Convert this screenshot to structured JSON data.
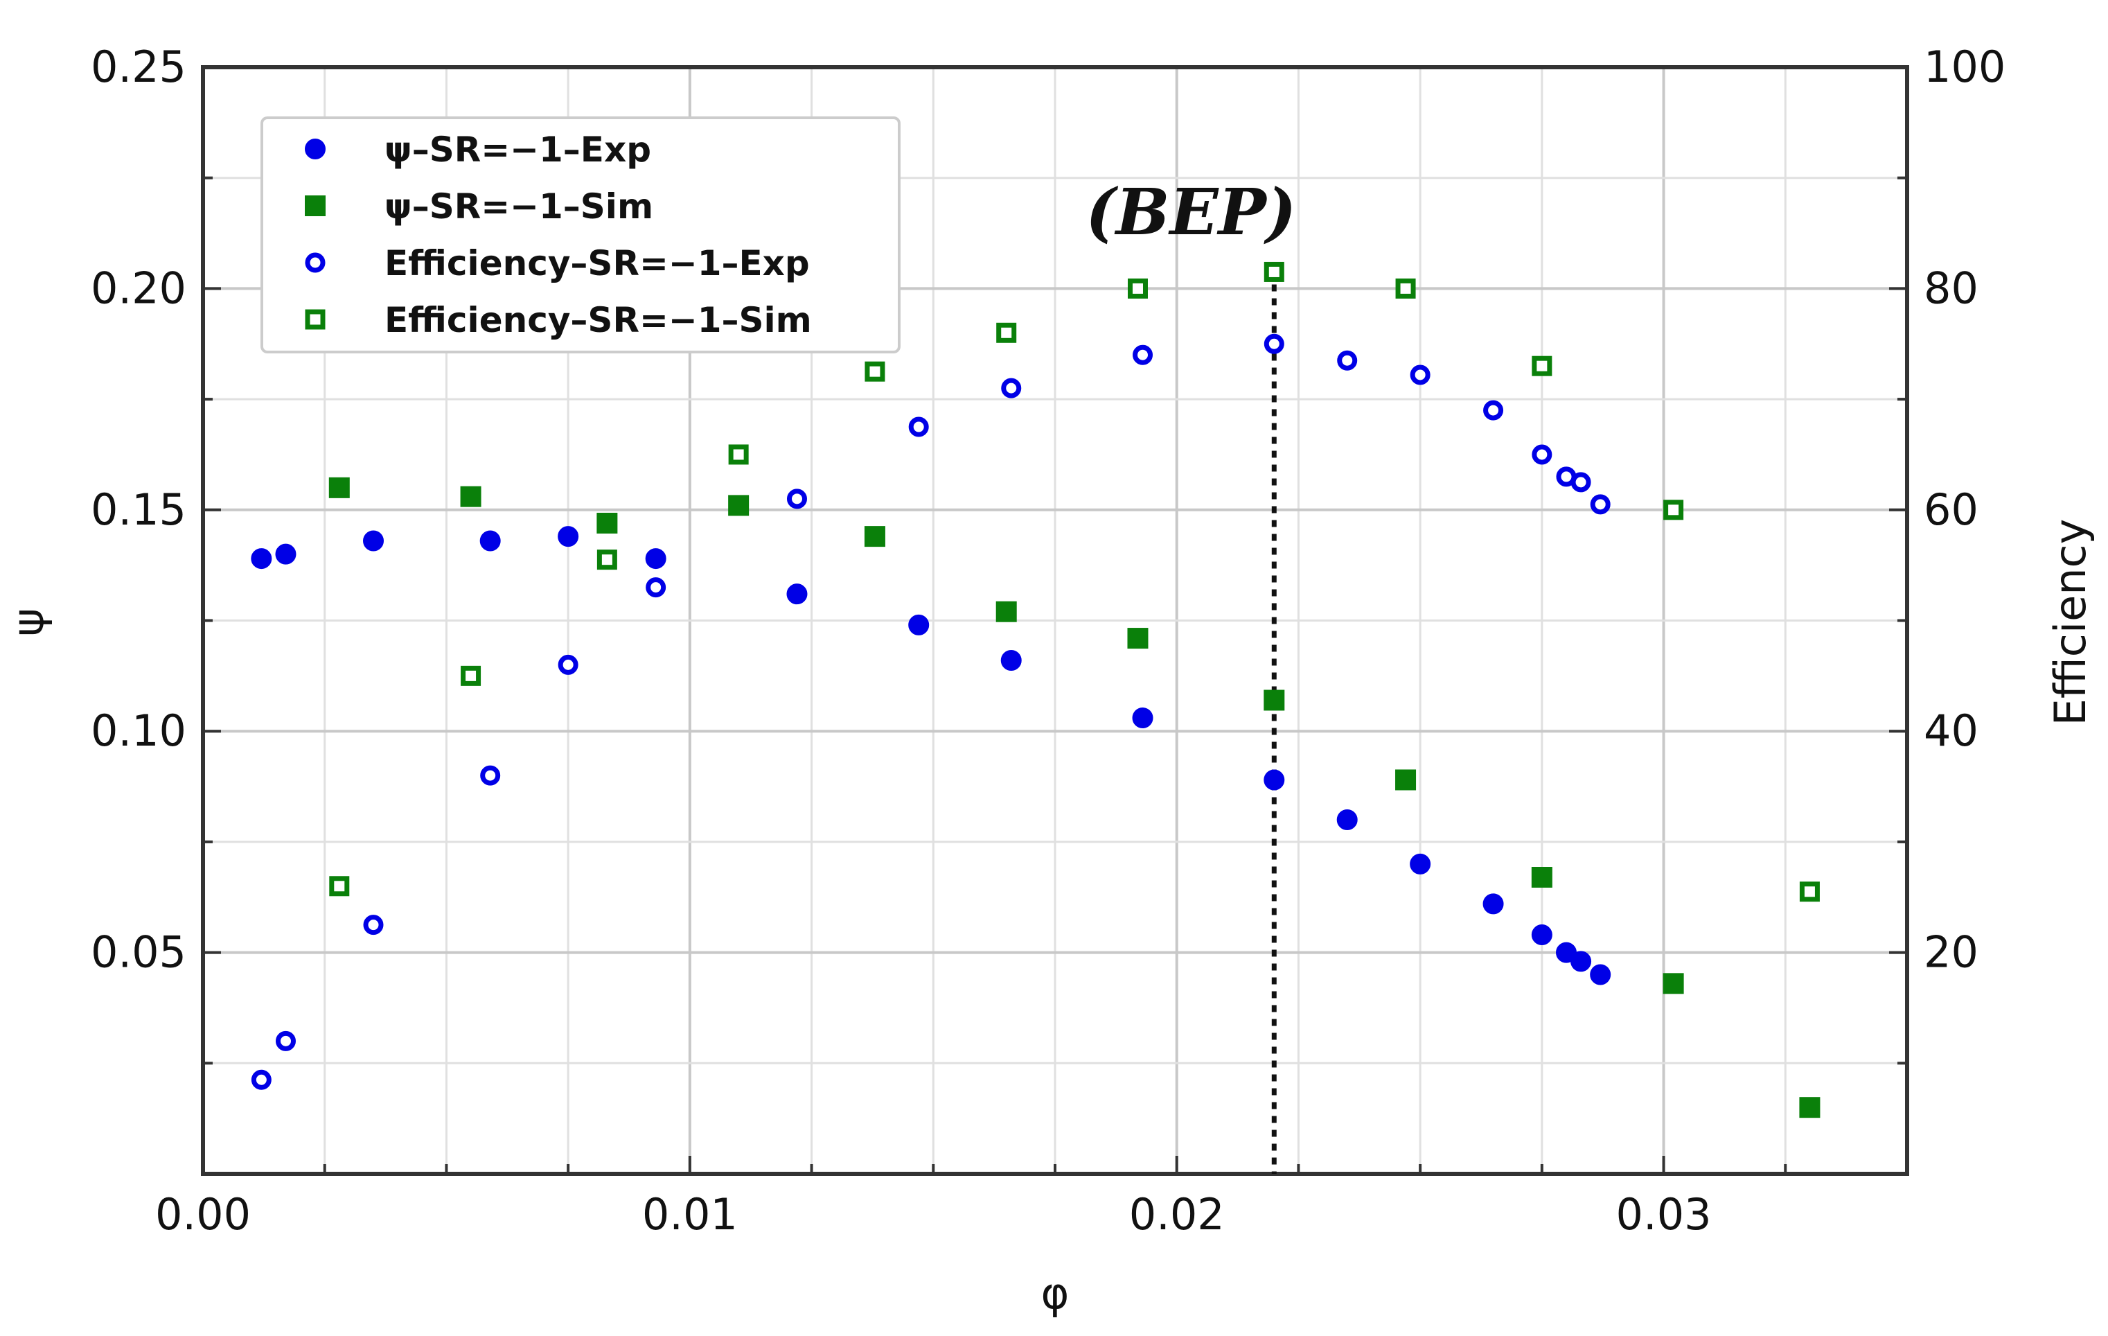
{
  "chart_data": {
    "type": "scatter",
    "title": "",
    "xlabel": "φ",
    "ylabel": "ψ",
    "y2label": "Efficiency",
    "xlim": [
      0.0,
      0.035
    ],
    "ylim": [
      0.0,
      0.25
    ],
    "y2lim": [
      0,
      100
    ],
    "x_ticks": [
      "0.00",
      "0.01",
      "0.02",
      "0.03"
    ],
    "y_ticks": [
      "0.05",
      "0.10",
      "0.15",
      "0.20",
      "0.25"
    ],
    "y2_ticks": [
      "20",
      "40",
      "60",
      "80",
      "100"
    ],
    "grid": true,
    "legend_position": "top-left",
    "annotation": {
      "text": "(BEP)",
      "x": 0.022
    },
    "series": [
      {
        "name": "ψ–SR=−1–Exp",
        "axis": "left",
        "marker": "circle",
        "filled": true,
        "color": "#0000e6",
        "points": [
          [
            0.0012,
            0.139
          ],
          [
            0.0017,
            0.14
          ],
          [
            0.0035,
            0.143
          ],
          [
            0.0059,
            0.143
          ],
          [
            0.0075,
            0.144
          ],
          [
            0.0093,
            0.139
          ],
          [
            0.0122,
            0.131
          ],
          [
            0.0147,
            0.124
          ],
          [
            0.0166,
            0.116
          ],
          [
            0.0193,
            0.103
          ],
          [
            0.022,
            0.089
          ],
          [
            0.0235,
            0.08
          ],
          [
            0.025,
            0.07
          ],
          [
            0.0265,
            0.061
          ],
          [
            0.0275,
            0.054
          ],
          [
            0.028,
            0.05
          ],
          [
            0.0283,
            0.048
          ],
          [
            0.0287,
            0.045
          ]
        ]
      },
      {
        "name": "ψ–SR=−1–Sim",
        "axis": "left",
        "marker": "square",
        "filled": true,
        "color": "#0a800a",
        "points": [
          [
            0.0028,
            0.155
          ],
          [
            0.0055,
            0.153
          ],
          [
            0.0083,
            0.147
          ],
          [
            0.011,
            0.151
          ],
          [
            0.0138,
            0.144
          ],
          [
            0.0165,
            0.127
          ],
          [
            0.0192,
            0.121
          ],
          [
            0.022,
            0.107
          ],
          [
            0.0247,
            0.089
          ],
          [
            0.0275,
            0.067
          ],
          [
            0.0302,
            0.043
          ],
          [
            0.033,
            0.015
          ]
        ]
      },
      {
        "name": "Efficiency–SR=−1–Exp",
        "axis": "right",
        "marker": "circle",
        "filled": false,
        "color": "#0000e6",
        "points": [
          [
            0.0012,
            8.5
          ],
          [
            0.0017,
            12
          ],
          [
            0.0035,
            22.5
          ],
          [
            0.0059,
            36
          ],
          [
            0.0075,
            46
          ],
          [
            0.0093,
            53
          ],
          [
            0.0122,
            61
          ],
          [
            0.0147,
            67.5
          ],
          [
            0.0166,
            71
          ],
          [
            0.0193,
            74
          ],
          [
            0.022,
            75
          ],
          [
            0.0235,
            73.5
          ],
          [
            0.025,
            72.2
          ],
          [
            0.0265,
            69
          ],
          [
            0.0275,
            65
          ],
          [
            0.028,
            63
          ],
          [
            0.0283,
            62.5
          ],
          [
            0.0287,
            60.5
          ]
        ]
      },
      {
        "name": "Efficiency–SR=−1–Sim",
        "axis": "right",
        "marker": "square",
        "filled": false,
        "color": "#0a800a",
        "points": [
          [
            0.0028,
            26
          ],
          [
            0.0055,
            45
          ],
          [
            0.0083,
            55.5
          ],
          [
            0.011,
            65
          ],
          [
            0.0138,
            72.5
          ],
          [
            0.0165,
            76
          ],
          [
            0.0192,
            80
          ],
          [
            0.022,
            81.5
          ],
          [
            0.0247,
            80
          ],
          [
            0.0275,
            73
          ],
          [
            0.0302,
            60
          ],
          [
            0.033,
            25.5
          ]
        ]
      }
    ]
  }
}
